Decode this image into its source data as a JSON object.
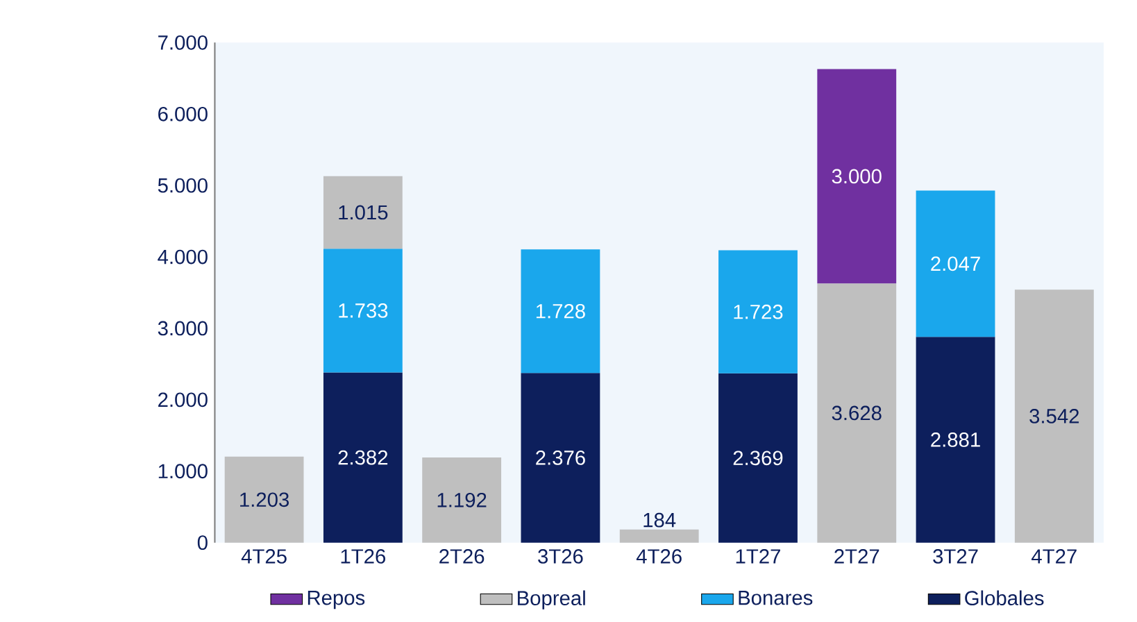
{
  "chart_data": {
    "type": "bar",
    "stacked": true,
    "categories": [
      "4T25",
      "1T26",
      "2T26",
      "3T26",
      "4T26",
      "1T27",
      "2T27",
      "3T27",
      "4T27"
    ],
    "series": [
      {
        "name": "Globales",
        "color": "#0d1f5c",
        "values": [
          null,
          2382,
          null,
          2376,
          null,
          2369,
          null,
          2881,
          null
        ],
        "value_labels": [
          null,
          "2.382",
          null,
          "2.376",
          null,
          "2.369",
          null,
          "2.881",
          null
        ]
      },
      {
        "name": "Bonares",
        "color": "#1aa7ec",
        "values": [
          null,
          1733,
          null,
          1728,
          null,
          1723,
          null,
          2047,
          null
        ],
        "value_labels": [
          null,
          "1.733",
          null,
          "1.728",
          null,
          "1.723",
          null,
          "2.047",
          null
        ]
      },
      {
        "name": "Bopreal",
        "color": "#bfbfbf",
        "values": [
          1203,
          1015,
          1192,
          null,
          184,
          null,
          3628,
          null,
          3542
        ],
        "value_labels": [
          "1.203",
          "1.015",
          "1.192",
          null,
          "184",
          null,
          "3.628",
          null,
          "3.542"
        ]
      },
      {
        "name": "Repos",
        "color": "#7030a0",
        "values": [
          null,
          null,
          null,
          null,
          null,
          null,
          3000,
          null,
          null
        ],
        "value_labels": [
          null,
          null,
          null,
          null,
          null,
          null,
          "3.000",
          null,
          null
        ]
      }
    ],
    "ylim": [
      0,
      7000
    ],
    "yticks": [
      {
        "value": 0,
        "label": "0"
      },
      {
        "value": 1000,
        "label": "1.000"
      },
      {
        "value": 2000,
        "label": "2.000"
      },
      {
        "value": 3000,
        "label": "3.000"
      },
      {
        "value": 4000,
        "label": "4.000"
      },
      {
        "value": 5000,
        "label": "5.000"
      },
      {
        "value": 6000,
        "label": "6.000"
      },
      {
        "value": 7000,
        "label": "7.000"
      }
    ],
    "legend": "bottom"
  }
}
